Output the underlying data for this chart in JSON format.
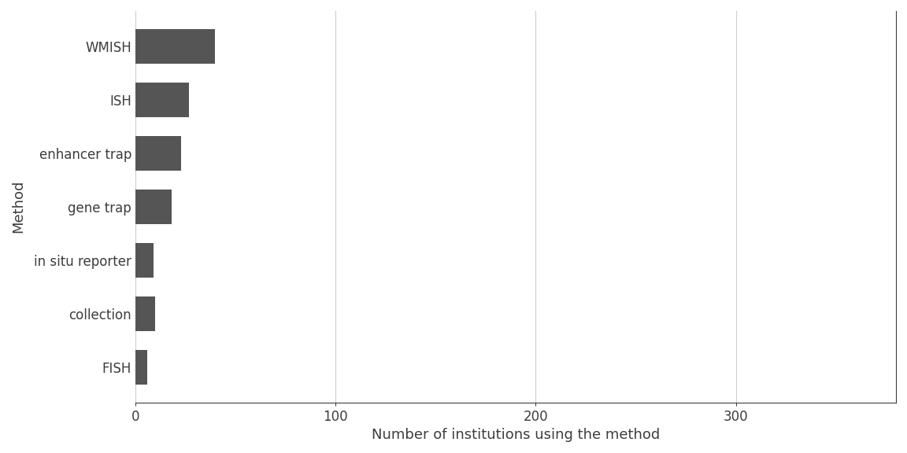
{
  "categories": [
    "WMISH",
    "ISH",
    "enhancer trap",
    "gene trap",
    "in situ reporter",
    "collection",
    "FISH"
  ],
  "values": [
    40,
    27,
    23,
    18,
    9,
    10,
    6
  ],
  "bar_color": "#555555",
  "title": "",
  "xlabel": "Number of institutions using the method",
  "ylabel": "Method",
  "xlim": [
    0,
    380
  ],
  "xticks": [
    0,
    100,
    200,
    300
  ],
  "background_color": "#ffffff",
  "bar_height": 0.65,
  "label_color": "#3d3d3d",
  "axis_color": "#3d3d3d",
  "grid_color": "#cccccc",
  "xlabel_fontsize": 13,
  "ylabel_fontsize": 13,
  "tick_fontsize": 12,
  "label_fontsize": 12
}
